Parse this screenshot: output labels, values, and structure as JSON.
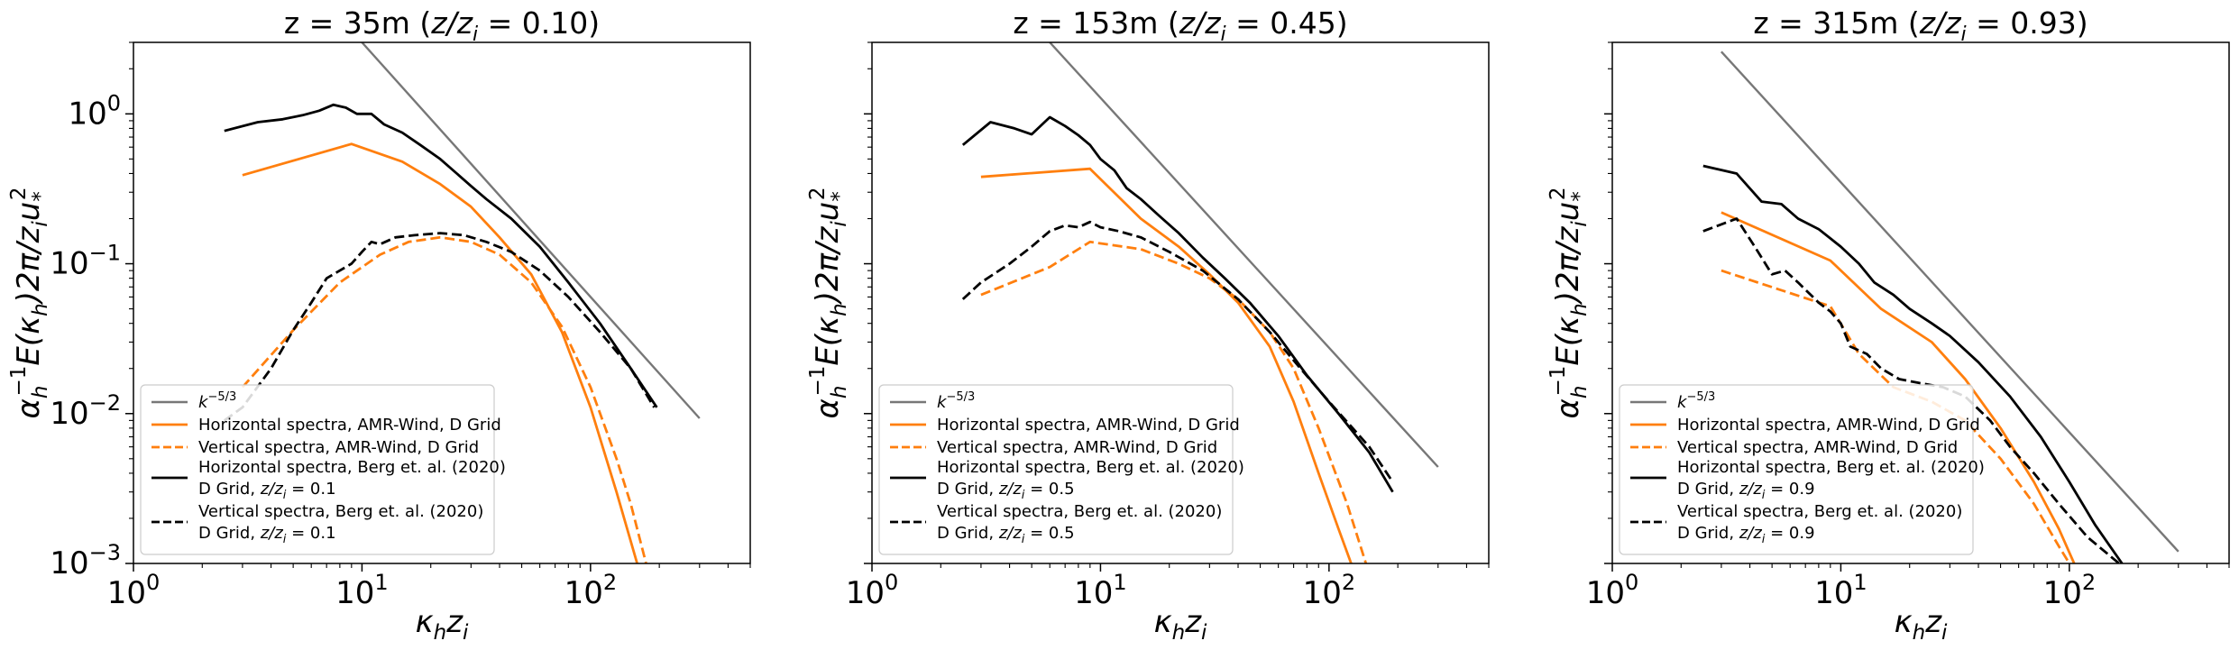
{
  "colors": {
    "reference": "#777777",
    "amr_wind": "#ff7f0e",
    "berg": "#000000"
  },
  "chart_data": [
    {
      "type": "line",
      "title": "z = 35m (z/z_i = 0.10)",
      "title_parts": {
        "prefix": "z = 35m (",
        "var": "z/z",
        "sub": "i",
        "suffix": " = 0.10)"
      },
      "xlabel": "κ_h z_i",
      "ylabel": "α_h^-1 E(κ_h) 2π / z_i u_*^2",
      "xscale": "log",
      "yscale": "log",
      "xlim": [
        1,
        500
      ],
      "ylim": [
        0.001,
        3
      ],
      "xticks": [
        {
          "v": 1,
          "base": "10",
          "exp": "0"
        },
        {
          "v": 10,
          "base": "10",
          "exp": "1"
        },
        {
          "v": 100,
          "base": "10",
          "exp": "2"
        }
      ],
      "yticks": [
        {
          "v": 0.001,
          "base": "10",
          "exp": "−3"
        },
        {
          "v": 0.01,
          "base": "10",
          "exp": "−2"
        },
        {
          "v": 0.1,
          "base": "10",
          "exp": "−1"
        },
        {
          "v": 1,
          "base": "10",
          "exp": "0"
        }
      ],
      "show_ytick_labels": true,
      "grid": false,
      "legend_position": "lower left",
      "series": [
        {
          "name": "k^{-5/3}",
          "color": "#777777",
          "dash": "solid",
          "points": [
            [
              10,
              3.0
            ],
            [
              300,
              0.0093
            ]
          ]
        },
        {
          "name": "Horizontal spectra, AMR-Wind, D Grid",
          "color": "#ff7f0e",
          "dash": "solid",
          "points": [
            [
              3,
              0.39
            ],
            [
              9,
              0.63
            ],
            [
              15,
              0.48
            ],
            [
              22,
              0.34
            ],
            [
              30,
              0.24
            ],
            [
              40,
              0.15
            ],
            [
              55,
              0.085
            ],
            [
              75,
              0.035
            ],
            [
              100,
              0.011
            ],
            [
              130,
              0.003
            ],
            [
              160,
              0.001
            ]
          ]
        },
        {
          "name": "Vertical spectra, AMR-Wind, D Grid",
          "color": "#ff7f0e",
          "dash": "dashed",
          "points": [
            [
              3,
              0.015
            ],
            [
              5,
              0.036
            ],
            [
              8,
              0.075
            ],
            [
              12,
              0.115
            ],
            [
              16,
              0.14
            ],
            [
              22,
              0.15
            ],
            [
              30,
              0.14
            ],
            [
              40,
              0.115
            ],
            [
              55,
              0.075
            ],
            [
              75,
              0.038
            ],
            [
              100,
              0.015
            ],
            [
              130,
              0.005
            ],
            [
              150,
              0.0025
            ],
            [
              175,
              0.001
            ]
          ]
        },
        {
          "name": "Horizontal spectra, Berg et. al. (2020)",
          "name_line2": "D Grid, z/z_i = 0.1",
          "label_var": "z/z",
          "label_sub": "i",
          "label_val": " = 0.1",
          "color": "#000000",
          "dash": "solid",
          "points": [
            [
              2.5,
              0.77
            ],
            [
              3.5,
              0.88
            ],
            [
              4.5,
              0.92
            ],
            [
              5.5,
              0.98
            ],
            [
              6.5,
              1.05
            ],
            [
              7.5,
              1.15
            ],
            [
              8.5,
              1.1
            ],
            [
              9.5,
              1.0
            ],
            [
              11,
              1.0
            ],
            [
              12.5,
              0.85
            ],
            [
              15,
              0.75
            ],
            [
              18,
              0.62
            ],
            [
              22,
              0.5
            ],
            [
              26,
              0.4
            ],
            [
              30,
              0.33
            ],
            [
              35,
              0.27
            ],
            [
              45,
              0.2
            ],
            [
              60,
              0.13
            ],
            [
              80,
              0.075
            ],
            [
              110,
              0.04
            ],
            [
              150,
              0.02
            ],
            [
              195,
              0.011
            ]
          ]
        },
        {
          "name": "Vertical spectra, Berg et. al. (2020)",
          "name_line2": "D Grid, z/z_i = 0.1",
          "label_var": "z/z",
          "label_sub": "i",
          "label_val": " = 0.1",
          "color": "#000000",
          "dash": "dashed",
          "points": [
            [
              2.5,
              0.009
            ],
            [
              3,
              0.011
            ],
            [
              4,
              0.02
            ],
            [
              5,
              0.036
            ],
            [
              6,
              0.055
            ],
            [
              7,
              0.08
            ],
            [
              8,
              0.09
            ],
            [
              9,
              0.1
            ],
            [
              10,
              0.12
            ],
            [
              11,
              0.14
            ],
            [
              12,
              0.135
            ],
            [
              14,
              0.15
            ],
            [
              17,
              0.155
            ],
            [
              22,
              0.16
            ],
            [
              28,
              0.155
            ],
            [
              35,
              0.14
            ],
            [
              45,
              0.12
            ],
            [
              60,
              0.09
            ],
            [
              80,
              0.06
            ],
            [
              110,
              0.035
            ],
            [
              150,
              0.02
            ],
            [
              190,
              0.011
            ]
          ]
        }
      ]
    },
    {
      "type": "line",
      "title": "z = 153m (z/z_i = 0.45)",
      "title_parts": {
        "prefix": "z = 153m (",
        "var": "z/z",
        "sub": "i",
        "suffix": " = 0.45)"
      },
      "xlabel": "κ_h z_i",
      "ylabel": "α_h^-1 E(κ_h) 2π / z_i u_*^2",
      "xscale": "log",
      "yscale": "log",
      "xlim": [
        1,
        500
      ],
      "ylim": [
        0.001,
        3
      ],
      "xticks": [
        {
          "v": 1,
          "base": "10",
          "exp": "0"
        },
        {
          "v": 10,
          "base": "10",
          "exp": "1"
        },
        {
          "v": 100,
          "base": "10",
          "exp": "2"
        }
      ],
      "yticks": [
        {
          "v": 0.001
        },
        {
          "v": 0.01
        },
        {
          "v": 0.1
        },
        {
          "v": 1
        }
      ],
      "show_ytick_labels": false,
      "grid": false,
      "legend_position": "lower left",
      "series": [
        {
          "name": "k^{-5/3}",
          "color": "#777777",
          "dash": "solid",
          "points": [
            [
              6,
              3.0
            ],
            [
              300,
              0.0044
            ]
          ]
        },
        {
          "name": "Horizontal spectra, AMR-Wind, D Grid",
          "color": "#ff7f0e",
          "dash": "solid",
          "points": [
            [
              3,
              0.38
            ],
            [
              9,
              0.43
            ],
            [
              15,
              0.2
            ],
            [
              22,
              0.13
            ],
            [
              30,
              0.085
            ],
            [
              40,
              0.055
            ],
            [
              55,
              0.028
            ],
            [
              70,
              0.012
            ],
            [
              90,
              0.004
            ],
            [
              110,
              0.0017
            ],
            [
              125,
              0.001
            ]
          ]
        },
        {
          "name": "Vertical spectra, AMR-Wind, D Grid",
          "color": "#ff7f0e",
          "dash": "dashed",
          "points": [
            [
              3,
              0.062
            ],
            [
              6,
              0.095
            ],
            [
              9,
              0.14
            ],
            [
              15,
              0.125
            ],
            [
              22,
              0.1
            ],
            [
              30,
              0.08
            ],
            [
              40,
              0.058
            ],
            [
              55,
              0.035
            ],
            [
              70,
              0.02
            ],
            [
              90,
              0.008
            ],
            [
              120,
              0.0025
            ],
            [
              145,
              0.001
            ]
          ]
        },
        {
          "name": "Horizontal spectra, Berg et. al. (2020)",
          "name_line2": "D Grid, z/z_i = 0.5",
          "label_var": "z/z",
          "label_sub": "i",
          "label_val": " = 0.5",
          "color": "#000000",
          "dash": "solid",
          "points": [
            [
              2.5,
              0.62
            ],
            [
              3.3,
              0.88
            ],
            [
              4.2,
              0.8
            ],
            [
              5,
              0.73
            ],
            [
              6,
              0.95
            ],
            [
              7,
              0.83
            ],
            [
              8,
              0.72
            ],
            [
              9,
              0.62
            ],
            [
              10,
              0.5
            ],
            [
              11.5,
              0.42
            ],
            [
              13,
              0.32
            ],
            [
              15,
              0.27
            ],
            [
              18,
              0.21
            ],
            [
              22,
              0.16
            ],
            [
              28,
              0.11
            ],
            [
              35,
              0.08
            ],
            [
              45,
              0.055
            ],
            [
              60,
              0.033
            ],
            [
              80,
              0.018
            ],
            [
              110,
              0.01
            ],
            [
              150,
              0.0055
            ],
            [
              190,
              0.003
            ]
          ]
        },
        {
          "name": "Vertical spectra, Berg et. al. (2020)",
          "name_line2": "D Grid, z/z_i = 0.5",
          "label_var": "z/z",
          "label_sub": "i",
          "label_val": " = 0.5",
          "color": "#000000",
          "dash": "dashed",
          "points": [
            [
              2.5,
              0.058
            ],
            [
              3,
              0.075
            ],
            [
              4,
              0.1
            ],
            [
              5,
              0.13
            ],
            [
              6,
              0.165
            ],
            [
              7,
              0.18
            ],
            [
              8,
              0.175
            ],
            [
              9,
              0.19
            ],
            [
              10,
              0.175
            ],
            [
              12,
              0.165
            ],
            [
              15,
              0.15
            ],
            [
              20,
              0.12
            ],
            [
              28,
              0.09
            ],
            [
              40,
              0.058
            ],
            [
              55,
              0.035
            ],
            [
              75,
              0.02
            ],
            [
              100,
              0.012
            ],
            [
              150,
              0.006
            ],
            [
              190,
              0.0035
            ]
          ]
        }
      ]
    },
    {
      "type": "line",
      "title": "z = 315m (z/z_i = 0.93)",
      "title_parts": {
        "prefix": "z = 315m (",
        "var": "z/z",
        "sub": "i",
        "suffix": " = 0.93)"
      },
      "xlabel": "κ_h z_i",
      "ylabel": "α_h^-1 E(κ_h) 2π / z_i u_*^2",
      "xscale": "log",
      "yscale": "log",
      "xlim": [
        1,
        500
      ],
      "ylim": [
        0.001,
        3
      ],
      "xticks": [
        {
          "v": 1,
          "base": "10",
          "exp": "0"
        },
        {
          "v": 10,
          "base": "10",
          "exp": "1"
        },
        {
          "v": 100,
          "base": "10",
          "exp": "2"
        }
      ],
      "yticks": [
        {
          "v": 0.001
        },
        {
          "v": 0.01
        },
        {
          "v": 0.1
        },
        {
          "v": 1
        }
      ],
      "show_ytick_labels": false,
      "grid": false,
      "legend_position": "lower left",
      "series": [
        {
          "name": "k^{-5/3}",
          "color": "#777777",
          "dash": "solid",
          "points": [
            [
              3,
              2.6
            ],
            [
              300,
              0.0012
            ]
          ]
        },
        {
          "name": "Horizontal spectra, AMR-Wind, D Grid",
          "color": "#ff7f0e",
          "dash": "solid",
          "points": [
            [
              3,
              0.22
            ],
            [
              9,
              0.105
            ],
            [
              15,
              0.05
            ],
            [
              25,
              0.03
            ],
            [
              35,
              0.017
            ],
            [
              50,
              0.008
            ],
            [
              70,
              0.0035
            ],
            [
              90,
              0.0017
            ],
            [
              105,
              0.001
            ]
          ]
        },
        {
          "name": "Vertical spectra, AMR-Wind, D Grid",
          "color": "#ff7f0e",
          "dash": "dashed",
          "points": [
            [
              3,
              0.09
            ],
            [
              9,
              0.052
            ],
            [
              12,
              0.025
            ],
            [
              17,
              0.015
            ],
            [
              25,
              0.012
            ],
            [
              35,
              0.009
            ],
            [
              50,
              0.005
            ],
            [
              70,
              0.0025
            ],
            [
              90,
              0.0013
            ],
            [
              100,
              0.001
            ]
          ]
        },
        {
          "name": "Horizontal spectra, Berg et. al. (2020)",
          "name_line2": "D Grid, z/z_i = 0.9",
          "label_var": "z/z",
          "label_sub": "i",
          "label_val": " = 0.9",
          "color": "#000000",
          "dash": "solid",
          "points": [
            [
              2.5,
              0.45
            ],
            [
              3.5,
              0.4
            ],
            [
              4.5,
              0.26
            ],
            [
              5.5,
              0.25
            ],
            [
              6.5,
              0.2
            ],
            [
              8,
              0.17
            ],
            [
              10,
              0.13
            ],
            [
              12,
              0.1
            ],
            [
              14,
              0.075
            ],
            [
              17,
              0.062
            ],
            [
              20,
              0.05
            ],
            [
              25,
              0.04
            ],
            [
              30,
              0.033
            ],
            [
              40,
              0.022
            ],
            [
              55,
              0.013
            ],
            [
              75,
              0.007
            ],
            [
              100,
              0.0035
            ],
            [
              130,
              0.0018
            ],
            [
              170,
              0.001
            ]
          ]
        },
        {
          "name": "Vertical spectra, Berg et. al. (2020)",
          "name_line2": "D Grid, z/z_i = 0.9",
          "label_var": "z/z",
          "label_sub": "i",
          "label_val": " = 0.9",
          "color": "#000000",
          "dash": "dashed",
          "points": [
            [
              2.5,
              0.165
            ],
            [
              3.5,
              0.2
            ],
            [
              4.2,
              0.13
            ],
            [
              5,
              0.085
            ],
            [
              5.7,
              0.09
            ],
            [
              6.5,
              0.075
            ],
            [
              8,
              0.055
            ],
            [
              9,
              0.048
            ],
            [
              10,
              0.04
            ],
            [
              11,
              0.028
            ],
            [
              13,
              0.025
            ],
            [
              15,
              0.02
            ],
            [
              18,
              0.017
            ],
            [
              22,
              0.016
            ],
            [
              28,
              0.015
            ],
            [
              35,
              0.013
            ],
            [
              45,
              0.009
            ],
            [
              55,
              0.006
            ],
            [
              70,
              0.004
            ],
            [
              90,
              0.0025
            ],
            [
              120,
              0.0015
            ],
            [
              165,
              0.001
            ]
          ]
        }
      ]
    }
  ]
}
